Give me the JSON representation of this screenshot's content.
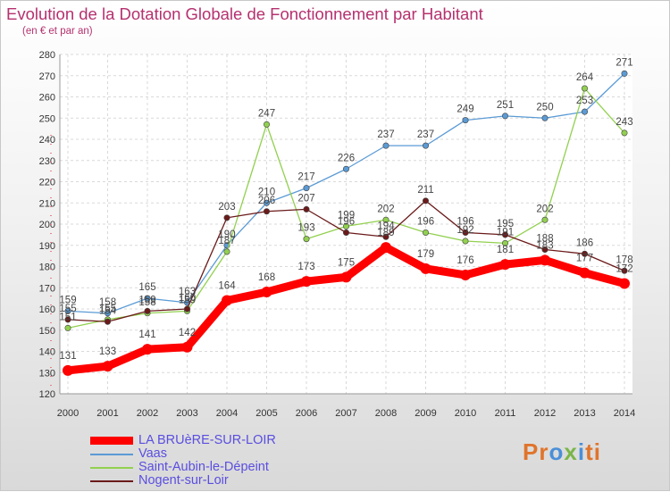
{
  "header": {
    "title": "Evolution de la Dotation Globale de Fonctionnement par Habitant",
    "subtitle": "(en € et par an)"
  },
  "logo": {
    "text": "Proxiti"
  },
  "chart_data": {
    "type": "line",
    "title": "Evolution de la Dotation Globale de Fonctionnement par Habitant",
    "subtitle": "(en € et par an)",
    "xlabel": "",
    "ylabel": "",
    "ylim": [
      120,
      280
    ],
    "yticks": [
      120,
      130,
      140,
      150,
      160,
      170,
      180,
      190,
      200,
      210,
      220,
      230,
      240,
      250,
      260,
      270,
      280
    ],
    "grid": true,
    "legend_position": "bottom-left",
    "categories": [
      "2000",
      "2001",
      "2002",
      "2003",
      "2004",
      "2005",
      "2006",
      "2007",
      "2008",
      "2009",
      "2010",
      "2011",
      "2012",
      "2013",
      "2014"
    ],
    "series": [
      {
        "name": "LA BRUèRE-SUR-LOIR",
        "color": "#ff0000",
        "values": [
          131,
          133,
          141,
          142,
          164,
          168,
          173,
          175,
          189,
          179,
          176,
          181,
          183,
          177,
          172
        ]
      },
      {
        "name": "Vaas",
        "color": "#5b9bd5",
        "values": [
          159,
          158,
          165,
          163,
          190,
          210,
          217,
          226,
          237,
          237,
          249,
          251,
          250,
          253,
          271
        ]
      },
      {
        "name": "Saint-Aubin-le-Dépeint",
        "color": "#92d050",
        "values": [
          151,
          155,
          158,
          159,
          187,
          247,
          193,
          199,
          202,
          196,
          192,
          191,
          202,
          264,
          243
        ]
      },
      {
        "name": "Nogent-sur-Loir",
        "color": "#6b1a1a",
        "values": [
          155,
          154,
          159,
          160,
          203,
          206,
          207,
          196,
          194,
          211,
          196,
          195,
          188,
          186,
          178
        ]
      }
    ]
  }
}
